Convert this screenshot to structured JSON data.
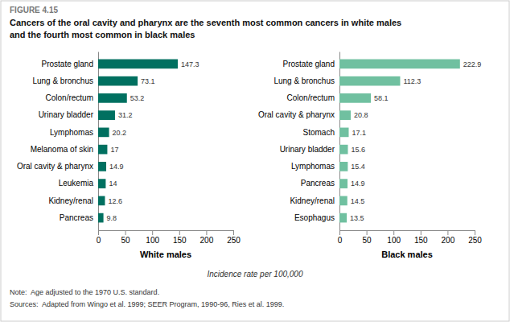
{
  "chart_data": [
    {
      "type": "bar",
      "orientation": "horizontal",
      "title": "Cancers of the oral cavity and pharynx are the seventh most common cancers in white males",
      "subtitle": "and the fourth most common in black males",
      "annotations": [
        "FIGURE 4.15",
        "Incidence rate per 100,000",
        "Note:  Age adjusted to the 1970 U.S. standard.",
        "Sources:  Adapted from Wingo et al. 1999; SEER Program, 1990-96, Ries et al. 1999."
      ],
      "xlabel": "White males",
      "categories": [
        "Prostate gland",
        "Lung & bronchus",
        "Colon/rectum",
        "Urinary bladder",
        "Lymphomas",
        "Melanoma of skin",
        "Oral cavity & pharynx",
        "Leukemia",
        "Kidney/renal",
        "Pancreas"
      ],
      "values": [
        147.3,
        73.1,
        53.2,
        31.2,
        20.2,
        17.0,
        14.9,
        14.0,
        12.6,
        9.8
      ],
      "color": "#007060",
      "xlim": [
        0,
        250
      ],
      "xticks": [
        0,
        50,
        100,
        150,
        200,
        250
      ],
      "data_labels": true
    },
    {
      "type": "bar",
      "orientation": "horizontal",
      "xlabel": "Black males",
      "categories": [
        "Prostate gland",
        "Lung & bronchus",
        "Colon/rectum",
        "Oral cavity & pharynx",
        "Stomach",
        "Urinary bladder",
        "Lymphomas",
        "Pancreas",
        "Kidney/renal",
        "Esophagus"
      ],
      "values": [
        222.9,
        112.3,
        58.1,
        20.8,
        17.1,
        15.6,
        15.4,
        14.9,
        14.5,
        13.5
      ],
      "color": "#70c0a0",
      "xlim": [
        0,
        250
      ],
      "xticks": [
        0,
        50,
        100,
        150,
        200,
        250
      ],
      "data_labels": true
    }
  ]
}
